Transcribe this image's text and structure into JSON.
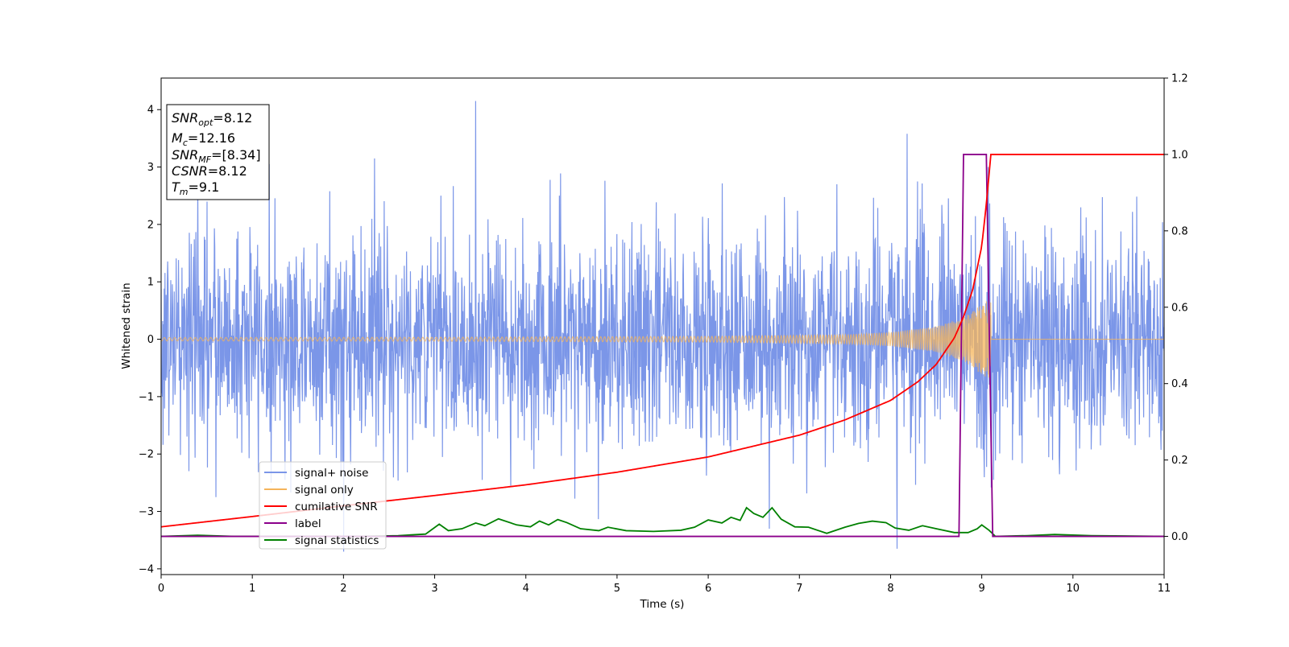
{
  "chart_data": {
    "type": "line",
    "xlabel": "Time (s)",
    "ylabel": "Whitened strain",
    "xlim": [
      0,
      11
    ],
    "ylim": [
      -4.1,
      4.55
    ],
    "y2lim": [
      -0.1,
      1.2
    ],
    "xticks": [
      "0",
      "1",
      "2",
      "3",
      "4",
      "5",
      "6",
      "7",
      "8",
      "9",
      "10",
      "11"
    ],
    "yticks": [
      "−4",
      "−3",
      "−2",
      "−1",
      "0",
      "1",
      "2",
      "3",
      "4"
    ],
    "y2ticks": [
      "0.0",
      "0.2",
      "0.4",
      "0.6",
      "0.8",
      "1.0",
      "1.2"
    ],
    "legend_position": "lower-left",
    "colors": {
      "signal_noise": "#7b96e8",
      "signal_only": "#f5b45a",
      "cumulative_snr": "#ff0000",
      "label": "#8b008b",
      "signal_statistics": "#008000"
    },
    "legend": [
      {
        "name": "signal+ noise",
        "color": "#7b96e8"
      },
      {
        "name": "signal only",
        "color": "#f5b45a"
      },
      {
        "name": "cumilative SNR",
        "color": "#ff0000"
      },
      {
        "name": "label",
        "color": "#8b008b"
      },
      {
        "name": "signal statistics",
        "color": "#008000"
      }
    ],
    "annotation": {
      "lines": [
        {
          "main": "SNR",
          "sub": "opt",
          "value": "=8.12"
        },
        {
          "main": "M",
          "sub": "c",
          "value": "=12.16"
        },
        {
          "main": "SNR",
          "sub": "MF",
          "value": "=[8.34]"
        },
        {
          "main": "CSNR",
          "sub": "",
          "value": "=8.12"
        },
        {
          "main": "T",
          "sub": "m",
          "value": "=9.1"
        }
      ]
    },
    "series": [
      {
        "name": "signal+ noise",
        "axis": "left",
        "noise_amplitude_sigma": 1.0,
        "approx_range": [
          -3.7,
          4.15
        ],
        "spikes": [
          {
            "x": 3.45,
            "y": 4.15
          },
          {
            "x": 8.18,
            "y": 3.58
          },
          {
            "x": 8.07,
            "y": -3.65
          },
          {
            "x": 2.0,
            "y": -3.7
          },
          {
            "x": 9.07,
            "y": 3.0
          },
          {
            "x": 0.4,
            "y": 2.7
          },
          {
            "x": 2.34,
            "y": 3.15
          },
          {
            "x": 0.6,
            "y": -2.75
          },
          {
            "x": 6.67,
            "y": -3.3
          }
        ]
      },
      {
        "name": "signal only",
        "axis": "left",
        "description_points": [
          {
            "x": 0.0,
            "amp": 0.03
          },
          {
            "x": 3.0,
            "amp": 0.035
          },
          {
            "x": 6.0,
            "amp": 0.05
          },
          {
            "x": 7.5,
            "amp": 0.08
          },
          {
            "x": 8.0,
            "amp": 0.12
          },
          {
            "x": 8.5,
            "amp": 0.22
          },
          {
            "x": 8.8,
            "amp": 0.38
          },
          {
            "x": 9.0,
            "amp": 0.62
          },
          {
            "x": 9.1,
            "amp": 0.7
          }
        ],
        "end_time": 9.1
      },
      {
        "name": "cumilative SNR",
        "axis": "right",
        "points": [
          [
            0,
            0.025
          ],
          [
            1,
            0.052
          ],
          [
            2,
            0.08
          ],
          [
            3,
            0.107
          ],
          [
            4,
            0.135
          ],
          [
            5,
            0.168
          ],
          [
            6,
            0.208
          ],
          [
            7,
            0.265
          ],
          [
            7.5,
            0.305
          ],
          [
            8,
            0.356
          ],
          [
            8.3,
            0.405
          ],
          [
            8.5,
            0.45
          ],
          [
            8.7,
            0.52
          ],
          [
            8.8,
            0.575
          ],
          [
            8.9,
            0.645
          ],
          [
            9.0,
            0.76
          ],
          [
            9.05,
            0.87
          ],
          [
            9.1,
            1.0
          ],
          [
            11,
            1.0
          ]
        ]
      },
      {
        "name": "label",
        "axis": "right",
        "points": [
          [
            0,
            0.0
          ],
          [
            8.75,
            0.0
          ],
          [
            8.8,
            1.0
          ],
          [
            9.05,
            1.0
          ],
          [
            9.12,
            0.0
          ],
          [
            11,
            0.0
          ]
        ]
      },
      {
        "name": "signal statistics",
        "axis": "right",
        "points": [
          [
            0,
            0.0
          ],
          [
            0.4,
            0.003
          ],
          [
            0.8,
            0.0
          ],
          [
            1.5,
            0.0
          ],
          [
            2.2,
            0.0
          ],
          [
            2.6,
            0.002
          ],
          [
            2.9,
            0.006
          ],
          [
            3.05,
            0.032
          ],
          [
            3.15,
            0.015
          ],
          [
            3.3,
            0.02
          ],
          [
            3.45,
            0.035
          ],
          [
            3.55,
            0.028
          ],
          [
            3.7,
            0.046
          ],
          [
            3.9,
            0.03
          ],
          [
            4.05,
            0.025
          ],
          [
            4.15,
            0.04
          ],
          [
            4.25,
            0.03
          ],
          [
            4.35,
            0.044
          ],
          [
            4.45,
            0.036
          ],
          [
            4.6,
            0.02
          ],
          [
            4.8,
            0.015
          ],
          [
            4.9,
            0.024
          ],
          [
            5.1,
            0.015
          ],
          [
            5.4,
            0.013
          ],
          [
            5.7,
            0.016
          ],
          [
            5.85,
            0.024
          ],
          [
            6.0,
            0.043
          ],
          [
            6.15,
            0.035
          ],
          [
            6.25,
            0.05
          ],
          [
            6.35,
            0.042
          ],
          [
            6.42,
            0.075
          ],
          [
            6.5,
            0.06
          ],
          [
            6.6,
            0.05
          ],
          [
            6.7,
            0.075
          ],
          [
            6.8,
            0.045
          ],
          [
            6.95,
            0.025
          ],
          [
            7.1,
            0.024
          ],
          [
            7.3,
            0.008
          ],
          [
            7.5,
            0.024
          ],
          [
            7.65,
            0.034
          ],
          [
            7.8,
            0.04
          ],
          [
            7.95,
            0.036
          ],
          [
            8.05,
            0.022
          ],
          [
            8.2,
            0.016
          ],
          [
            8.35,
            0.028
          ],
          [
            8.5,
            0.02
          ],
          [
            8.7,
            0.01
          ],
          [
            8.85,
            0.01
          ],
          [
            8.95,
            0.02
          ],
          [
            9.0,
            0.03
          ],
          [
            9.08,
            0.016
          ],
          [
            9.15,
            0.0
          ],
          [
            9.5,
            0.002
          ],
          [
            9.8,
            0.005
          ],
          [
            10.2,
            0.002
          ],
          [
            11,
            0.0
          ]
        ]
      }
    ]
  }
}
